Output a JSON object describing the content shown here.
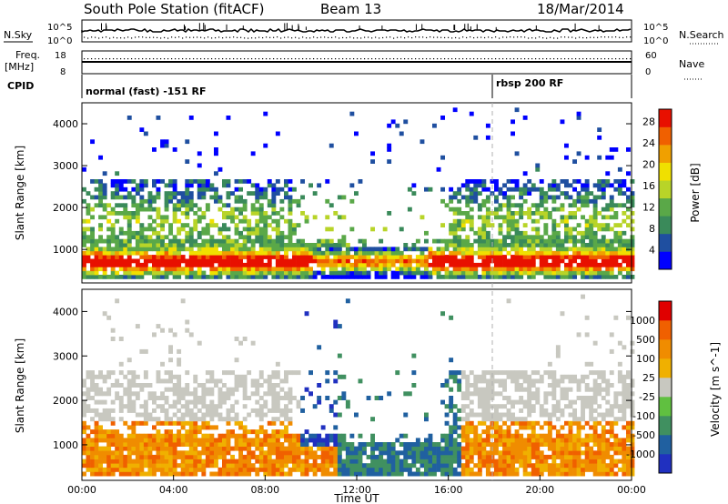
{
  "header": {
    "station": "South Pole Station (fitACF)",
    "beam": "Beam 13",
    "date": "18/Mar/2014"
  },
  "strip_panels": {
    "nsky_label": "N.Sky",
    "nsky_tick_top": "10^5",
    "nsky_tick_bottom": "10^0",
    "nsearch_label": "N.Search",
    "nsearch_tick_top": "10^5",
    "nsearch_tick_bottom": "10^0",
    "freq_label_line1": "Freq.",
    "freq_label_line2": "[MHz]",
    "freq_tick_top": "18",
    "freq_tick_bottom": "8",
    "nave_label": "Nave",
    "nave_tick_top": "60",
    "nave_tick_bottom": "0",
    "cpid_label": "CPID",
    "cpid_segments": [
      {
        "text": "normal (fast) -151 RF",
        "start_hour": 0
      },
      {
        "text": "rbsp 200 RF",
        "start_hour": 18
      }
    ]
  },
  "colors": {
    "power_scale": [
      "#0000ff",
      "#1f4fa0",
      "#3a8a5a",
      "#5aa848",
      "#b8d428",
      "#f0e000",
      "#f0a000",
      "#f06000",
      "#e81000"
    ],
    "velocity_scale": [
      "#e00000",
      "#f06000",
      "#f08c00",
      "#f0b000",
      "#c8c8c0",
      "#60c040",
      "#409060",
      "#2060a0",
      "#2030c0"
    ]
  },
  "chart_data": [
    {
      "type": "heatmap",
      "name": "power",
      "xlabel": "",
      "ylabel": "Slant Range [km]",
      "xlim_hours": [
        0,
        24
      ],
      "ylim_km": [
        200,
        4500
      ],
      "yticks": [
        "1000",
        "2000",
        "3000",
        "4000"
      ],
      "colorbar_label": "Power [dB]",
      "colorbar_ticks": [
        "4",
        "8",
        "12",
        "16",
        "20",
        "24",
        "28"
      ],
      "colorbar_range": [
        0,
        30
      ]
    },
    {
      "type": "heatmap",
      "name": "velocity",
      "xlabel": "Time UT",
      "ylabel": "Slant Range [km]",
      "xlim_hours": [
        0,
        24
      ],
      "ylim_km": [
        200,
        4500
      ],
      "xticks": [
        "00:00",
        "04:00",
        "08:00",
        "12:00",
        "16:00",
        "20:00",
        "00:00"
      ],
      "yticks": [
        "1000",
        "2000",
        "3000",
        "4000"
      ],
      "colorbar_label": "Velocity [m s^-1]",
      "colorbar_ticks": [
        "1000",
        "500",
        "100",
        "25",
        "-25",
        "-100",
        "-500",
        "-1000"
      ]
    }
  ]
}
